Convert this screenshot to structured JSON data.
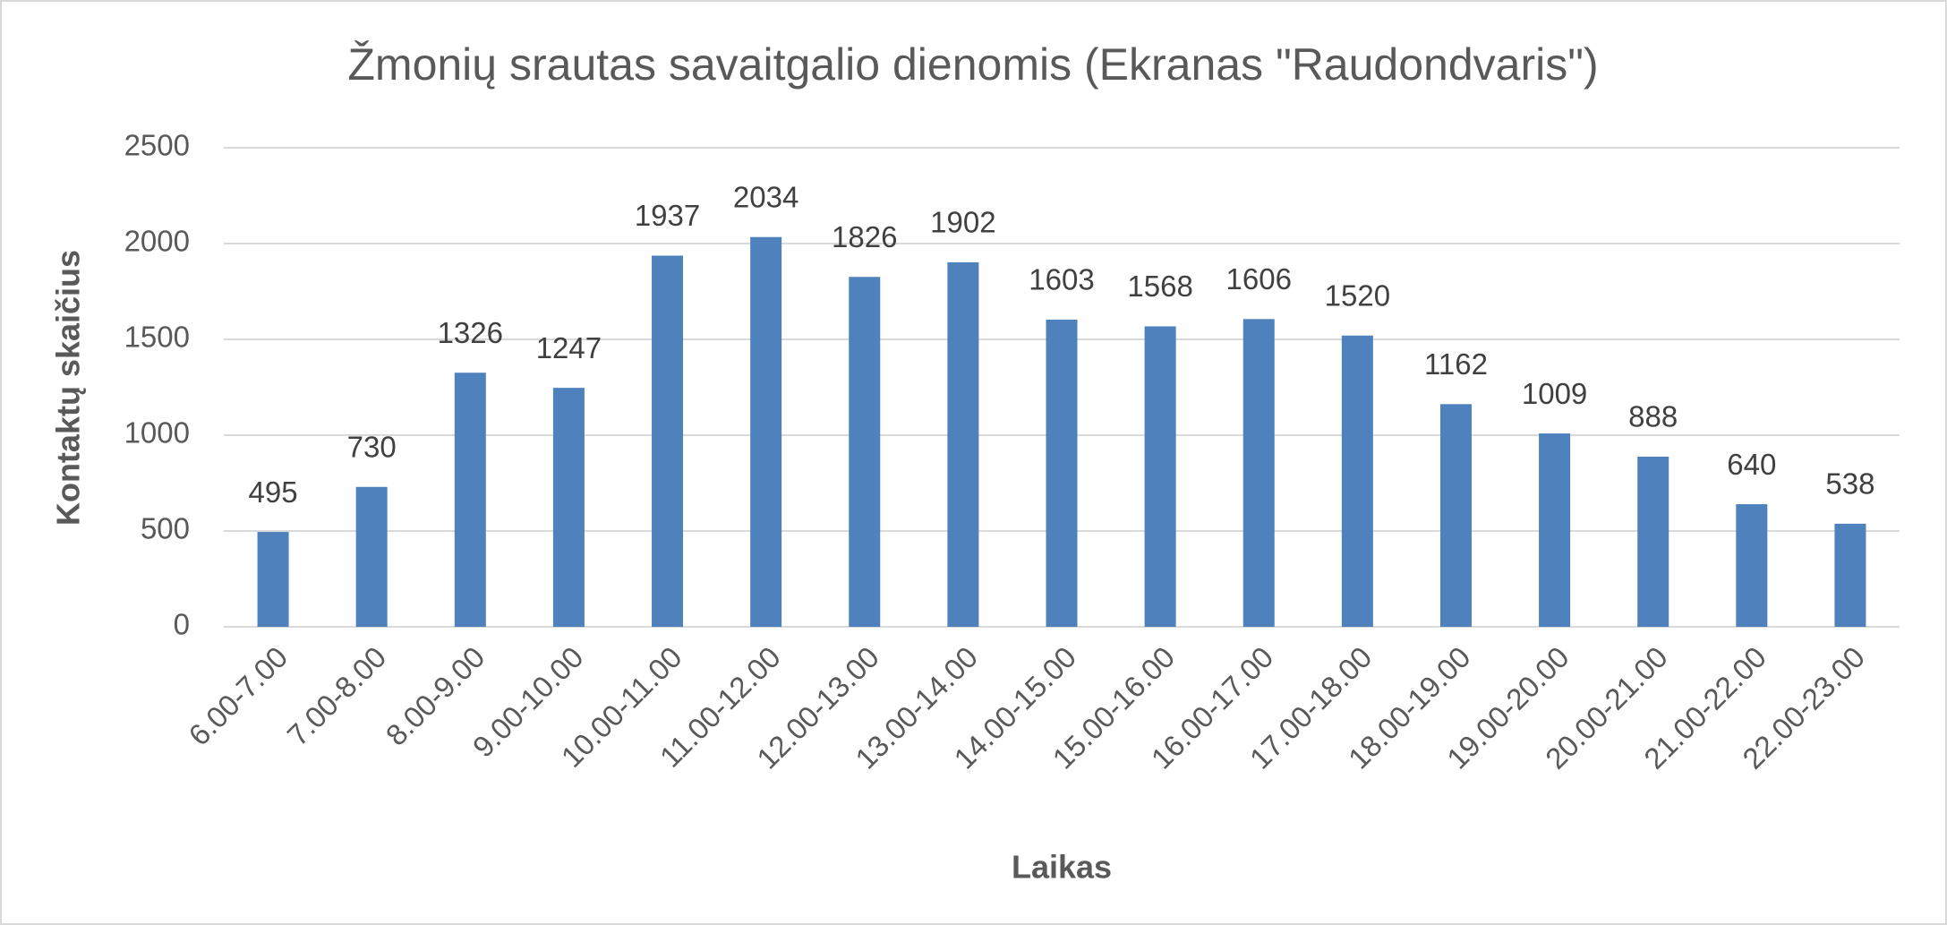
{
  "chart_data": {
    "type": "bar",
    "title": "Žmonių srautas savaitgalio dienomis (Ekranas \"Raudondvaris\")",
    "x_label": "Laikas",
    "y_label": "Kontaktų skaičius",
    "categories": [
      "6.00-7.00",
      "7.00-8.00",
      "8.00-9.00",
      "9.00-10.00",
      "10.00-11.00",
      "11.00-12.00",
      "12.00-13.00",
      "13.00-14.00",
      "14.00-15.00",
      "15.00-16.00",
      "16.00-17.00",
      "17.00-18.00",
      "18.00-19.00",
      "19.00-20.00",
      "20.00-21.00",
      "21.00-22.00",
      "22.00-23.00"
    ],
    "values": [
      495,
      730,
      1326,
      1247,
      1937,
      2034,
      1826,
      1902,
      1603,
      1568,
      1606,
      1520,
      1162,
      1009,
      888,
      640,
      538
    ],
    "color": "#4f81bd",
    "ylim": [
      0,
      2500
    ],
    "yticks": [
      0,
      500,
      1000,
      1500,
      2000,
      2500
    ],
    "grid": true
  }
}
